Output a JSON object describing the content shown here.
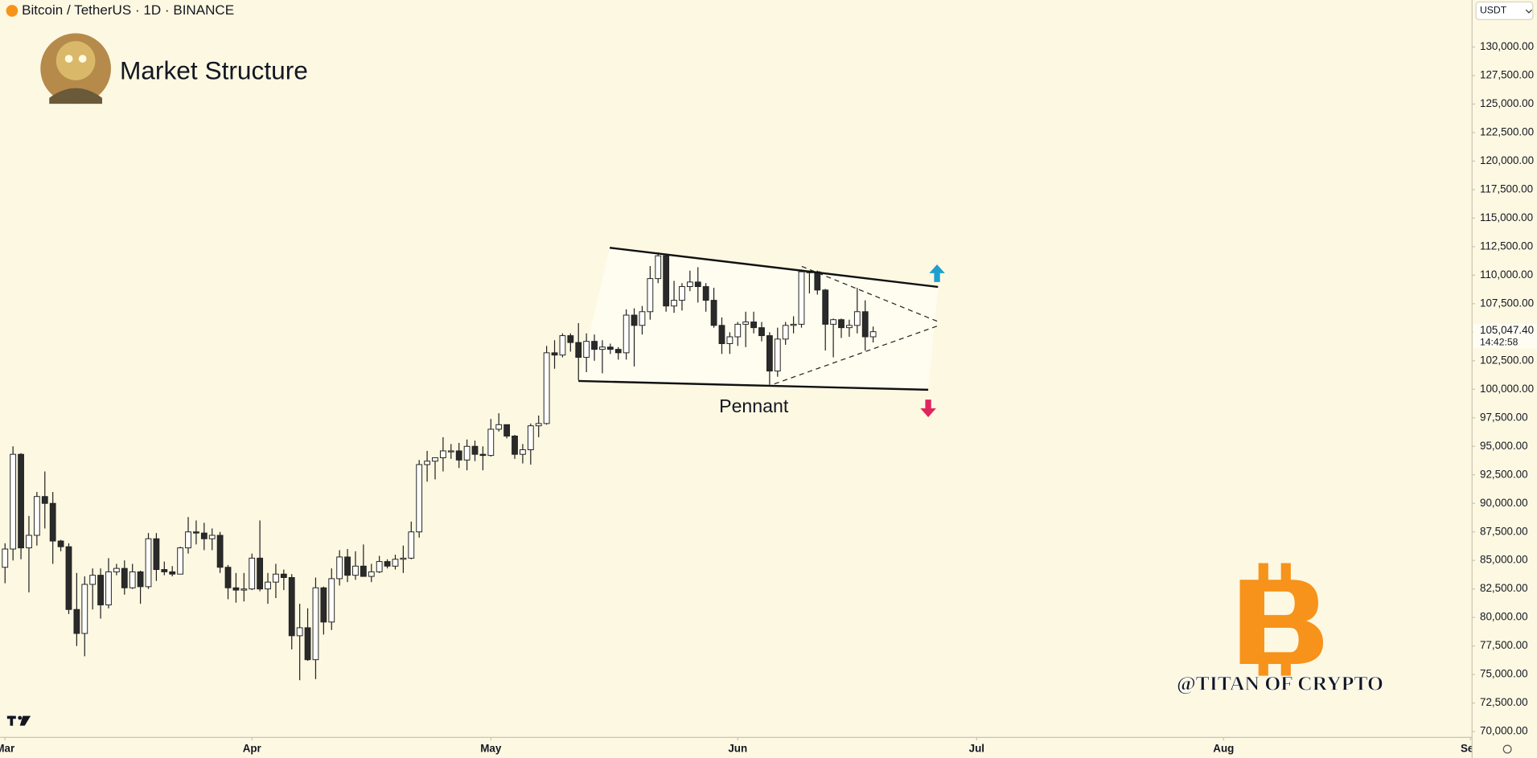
{
  "chart_data": {
    "type": "candlestick",
    "title": "Bitcoin / TetherUS · 1D · BINANCE",
    "subtitle": "Market Structure",
    "annotation": "Pennant",
    "watermark": "@TITAN OF CRYPTO",
    "currency": "USDT",
    "up_color": "#ffffff",
    "down_color": "#2a2a2a",
    "x": [
      0,
      1,
      2,
      3,
      4,
      5,
      6,
      7,
      8,
      9,
      10,
      11,
      12,
      13,
      14,
      15,
      16,
      17,
      18,
      19,
      20,
      21,
      22,
      23,
      24,
      25,
      26,
      27,
      28,
      29,
      30,
      31,
      32,
      33,
      34,
      35,
      36,
      37,
      38,
      39,
      40,
      41,
      42,
      43,
      44,
      45,
      46,
      47,
      48,
      49,
      50,
      51,
      52,
      53,
      54,
      55,
      56,
      57,
      58,
      59,
      60,
      61,
      62,
      63,
      64,
      65,
      66,
      67,
      68,
      69,
      70,
      71,
      72,
      73,
      74,
      75,
      76,
      77,
      78,
      79,
      80,
      81,
      82,
      83,
      84,
      85,
      86,
      87,
      88,
      89,
      90,
      91,
      92,
      93,
      94,
      95,
      96,
      97,
      98,
      99,
      100,
      101,
      102,
      103,
      104,
      105,
      106,
      107,
      108,
      109
    ],
    "open": [
      84400,
      86000,
      94300,
      86100,
      87200,
      90600,
      90000,
      86700,
      86200,
      80700,
      78600,
      82900,
      83700,
      81100,
      84000,
      84300,
      82600,
      84000,
      82700,
      86900,
      84200,
      84000,
      83800,
      86100,
      87500,
      87400,
      86900,
      87200,
      84400,
      82600,
      82400,
      82500,
      85200,
      82500,
      83100,
      83800,
      83500,
      78400,
      79100,
      76300,
      82600,
      79600,
      83400,
      85300,
      83700,
      84500,
      83600,
      84000,
      84900,
      84500,
      85100,
      85200,
      87500,
      93400,
      93700,
      94000,
      94600,
      94600,
      93800,
      95000,
      94300,
      94200,
      96500,
      96900,
      95900,
      94300,
      94700,
      96800,
      97000,
      103200,
      103000,
      104700,
      104100,
      102800,
      104200,
      103500,
      103700,
      103500,
      103200,
      106500,
      105600,
      106800,
      109700,
      111700,
      107300,
      107800,
      109000,
      109400,
      109000,
      107800,
      105600,
      104000,
      104600,
      105700,
      105900,
      105400,
      104700,
      101600,
      104400,
      105600,
      105700,
      110300,
      110300,
      108700,
      105700,
      106100,
      105400,
      105600,
      106800,
      104600
    ],
    "high": [
      86500,
      95000,
      94400,
      88900,
      91000,
      92800,
      91000,
      86800,
      86500,
      83900,
      83600,
      84300,
      84300,
      85200,
      84700,
      85000,
      84700,
      84100,
      87400,
      87400,
      84900,
      84500,
      86200,
      88800,
      88500,
      88300,
      87800,
      87500,
      84600,
      83900,
      83900,
      85600,
      88500,
      83900,
      84700,
      84200,
      83800,
      81200,
      80800,
      83500,
      82700,
      84300,
      85900,
      86000,
      85800,
      86400,
      84700,
      85400,
      85100,
      85500,
      86300,
      88400,
      93800,
      94600,
      94000,
      95800,
      95200,
      95300,
      95600,
      95500,
      95000,
      97400,
      97900,
      96900,
      96000,
      95200,
      97000,
      97700,
      103800,
      104300,
      104900,
      104900,
      105800,
      104900,
      104800,
      104300,
      104000,
      103700,
      107000,
      107100,
      107300,
      110800,
      112000,
      111800,
      109500,
      109300,
      110400,
      110700,
      109300,
      108900,
      106300,
      105000,
      105900,
      106800,
      106800,
      105900,
      105000,
      105400,
      105900,
      106400,
      110500,
      110400,
      110400,
      108800,
      106200,
      106200,
      106100,
      108900,
      107800,
      105500
    ],
    "low": [
      83000,
      85000,
      85100,
      82200,
      86300,
      87800,
      84700,
      85800,
      80300,
      77500,
      76600,
      80700,
      79900,
      80800,
      83700,
      82000,
      82500,
      81200,
      82500,
      83200,
      83700,
      83600,
      83800,
      85600,
      86400,
      85900,
      85900,
      83900,
      81600,
      81300,
      81400,
      82400,
      82300,
      81200,
      81700,
      82400,
      77200,
      74500,
      76200,
      74600,
      78500,
      78900,
      82800,
      83100,
      83300,
      83600,
      83100,
      83900,
      84300,
      84200,
      83900,
      85100,
      87000,
      91900,
      92100,
      92800,
      93900,
      93100,
      92900,
      93700,
      92900,
      94100,
      96300,
      95700,
      93900,
      93500,
      93400,
      95800,
      96900,
      101800,
      102800,
      103300,
      100800,
      101500,
      102500,
      101400,
      103100,
      102600,
      102600,
      102000,
      104800,
      106100,
      109300,
      106800,
      106700,
      106900,
      108600,
      107600,
      106800,
      105400,
      103100,
      103100,
      103800,
      103700,
      104900,
      104200,
      100400,
      101100,
      103900,
      104900,
      105400,
      108400,
      108300,
      103400,
      102800,
      104500,
      104600,
      104900,
      103400,
      104100
    ],
    "close": [
      86000,
      94300,
      86100,
      87200,
      90600,
      90000,
      86700,
      86200,
      80700,
      78600,
      82900,
      83700,
      81100,
      84000,
      84300,
      82600,
      84000,
      82700,
      86900,
      84200,
      84000,
      83800,
      86100,
      87500,
      87400,
      86900,
      87200,
      84400,
      82600,
      82400,
      82500,
      85200,
      82500,
      83100,
      83800,
      83500,
      78400,
      79100,
      76300,
      82600,
      79600,
      83400,
      85300,
      83700,
      84500,
      83600,
      84000,
      84900,
      84500,
      85100,
      85200,
      87500,
      93400,
      93700,
      94000,
      94600,
      94600,
      93800,
      95000,
      94300,
      94200,
      96500,
      96900,
      95900,
      94300,
      94700,
      96800,
      97000,
      103200,
      103000,
      104700,
      104100,
      102800,
      104200,
      103500,
      103700,
      103500,
      103200,
      106500,
      105600,
      106800,
      109700,
      111700,
      107300,
      107800,
      109000,
      109400,
      109000,
      107800,
      105600,
      104000,
      104600,
      105700,
      105900,
      105400,
      104700,
      101600,
      104400,
      105600,
      105700,
      110300,
      110300,
      108700,
      105700,
      106100,
      105400,
      105600,
      106800,
      104600,
      105047.4
    ],
    "last_price": {
      "value": 105047.4,
      "label": "105,047.40"
    },
    "countdown": "14:42:58",
    "xlim": [
      -0.6,
      184.2
    ],
    "ylim": [
      69485,
      134120
    ],
    "xticks": [
      {
        "value": 0,
        "label": "Mar"
      },
      {
        "value": 31,
        "label": "Apr"
      },
      {
        "value": 61,
        "label": "May"
      },
      {
        "value": 92,
        "label": "Jun"
      },
      {
        "value": 122,
        "label": "Jul"
      },
      {
        "value": 153,
        "label": "Aug"
      },
      {
        "value": 184,
        "label": "Sep"
      }
    ],
    "yticks": [
      {
        "value": 70000,
        "label": "70,000.00"
      },
      {
        "value": 72500,
        "label": "72,500.00"
      },
      {
        "value": 75000,
        "label": "75,000.00"
      },
      {
        "value": 77500,
        "label": "77,500.00"
      },
      {
        "value": 80000,
        "label": "80,000.00"
      },
      {
        "value": 82500,
        "label": "82,500.00"
      },
      {
        "value": 85000,
        "label": "85,000.00"
      },
      {
        "value": 87500,
        "label": "87,500.00"
      },
      {
        "value": 90000,
        "label": "90,000.00"
      },
      {
        "value": 92500,
        "label": "92,500.00"
      },
      {
        "value": 95000,
        "label": "95,000.00"
      },
      {
        "value": 97500,
        "label": "97,500.00"
      },
      {
        "value": 100000,
        "label": "100,000.00"
      },
      {
        "value": 102500,
        "label": "102,500.00"
      },
      {
        "value": 105000,
        "label": "105,000.00"
      },
      {
        "value": 107500,
        "label": "107,500.00"
      },
      {
        "value": 110000,
        "label": "110,000.00"
      },
      {
        "value": 112500,
        "label": "112,500.00"
      },
      {
        "value": 115000,
        "label": "115,000.00"
      },
      {
        "value": 117500,
        "label": "117,500.00"
      },
      {
        "value": 120000,
        "label": "120,000.00"
      },
      {
        "value": 122500,
        "label": "122,500.00"
      },
      {
        "value": 125000,
        "label": "125,000.00"
      },
      {
        "value": 127500,
        "label": "127,500.00"
      },
      {
        "value": 130000,
        "label": "130,000.00"
      }
    ]
  }
}
